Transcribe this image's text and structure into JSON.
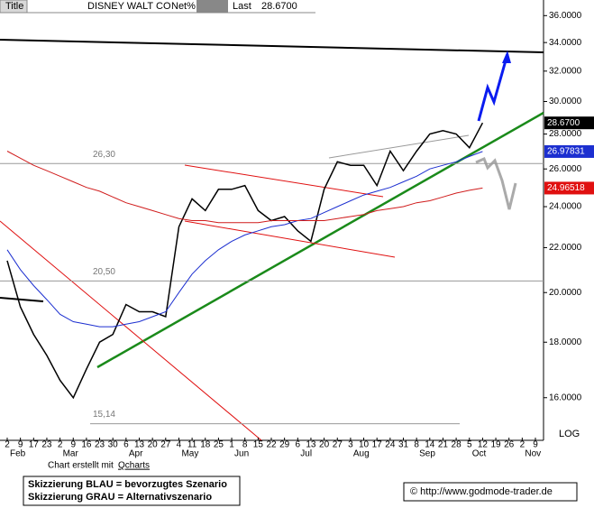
{
  "header": {
    "title_label": "Title",
    "symbol": "DISNEY WALT CO",
    "field": "Net%",
    "last_label": "Last",
    "last_value": "28.6700"
  },
  "chart_data": {
    "type": "line",
    "log_scale": true,
    "scale_label": "LOG",
    "categories": [
      "2",
      "9",
      "17",
      "23",
      "2",
      "9",
      "16",
      "23",
      "30",
      "6",
      "13",
      "20",
      "27",
      "4",
      "11",
      "18",
      "25",
      "1",
      "8",
      "15",
      "22",
      "29",
      "6",
      "13",
      "20",
      "27",
      "3",
      "10",
      "17",
      "24",
      "31",
      "8",
      "14",
      "21",
      "28",
      "5",
      "12",
      "19",
      "26",
      "2",
      "9"
    ],
    "month_labels": [
      "Feb",
      null,
      null,
      null,
      "Mar",
      null,
      null,
      null,
      null,
      "Apr",
      null,
      null,
      null,
      "May",
      null,
      null,
      null,
      "Jun",
      null,
      null,
      null,
      null,
      "Jul",
      null,
      null,
      null,
      "Aug",
      null,
      null,
      null,
      null,
      "Sep",
      null,
      null,
      null,
      "Oct",
      null,
      null,
      null,
      "Nov",
      null
    ],
    "series": [
      {
        "color": "#000000",
        "values": [
          21.4,
          19.4,
          18.3,
          17.5,
          16.6,
          16.0,
          17.0,
          18.0,
          18.3,
          19.5,
          19.2,
          19.2,
          19.0,
          23.0,
          24.4,
          23.8,
          24.9,
          24.9,
          25.1,
          23.8,
          23.3,
          23.5,
          22.8,
          22.3,
          24.9,
          26.4,
          26.2,
          26.2,
          25.1,
          27.0,
          25.9,
          27.0,
          28.0,
          28.2,
          28.0,
          27.2,
          28.67,
          null,
          null,
          null,
          null
        ]
      },
      {
        "color": "#1c2fd0",
        "values": [
          21.9,
          21.0,
          20.3,
          19.7,
          19.1,
          18.8,
          18.7,
          18.6,
          18.6,
          18.7,
          18.8,
          19.0,
          19.2,
          20.0,
          20.8,
          21.4,
          21.9,
          22.3,
          22.6,
          22.8,
          23.0,
          23.1,
          23.3,
          23.4,
          23.7,
          24.0,
          24.3,
          24.6,
          24.8,
          25.0,
          25.3,
          25.6,
          26.0,
          26.2,
          26.4,
          26.7,
          26.97831,
          null,
          null,
          null,
          null
        ]
      },
      {
        "color": "#d01c1c",
        "values": [
          27.0,
          26.6,
          26.2,
          25.9,
          25.6,
          25.3,
          25.0,
          24.8,
          24.5,
          24.2,
          24.0,
          23.8,
          23.6,
          23.4,
          23.3,
          23.3,
          23.2,
          23.2,
          23.2,
          23.2,
          23.3,
          23.3,
          23.3,
          23.3,
          23.3,
          23.4,
          23.5,
          23.6,
          23.8,
          23.9,
          24.0,
          24.2,
          24.3,
          24.5,
          24.7,
          24.85,
          24.96518,
          null,
          null,
          null,
          null
        ]
      }
    ],
    "ylim": [
      14.7,
      37.0
    ],
    "yticks": [
      {
        "value": 16,
        "label": "16.0000"
      },
      {
        "value": 18,
        "label": "18.0000"
      },
      {
        "value": 20,
        "label": "20.0000"
      },
      {
        "value": 22,
        "label": "22.0000"
      },
      {
        "value": 24,
        "label": "24.0000"
      },
      {
        "value": 26,
        "label": "26.0000"
      },
      {
        "value": 28,
        "label": "28.0000"
      },
      {
        "value": 30,
        "label": "30.0000"
      },
      {
        "value": 32,
        "label": "32.0000"
      },
      {
        "value": 34,
        "label": "34.0000"
      },
      {
        "value": 36,
        "label": "36.0000"
      }
    ],
    "levels": [
      {
        "value": 26.3,
        "label": "26,30"
      },
      {
        "value": 20.5,
        "label": "20,50"
      },
      {
        "value": 15.14,
        "label": "15,14"
      }
    ],
    "price_tags": [
      {
        "value": 28.67,
        "label": "28.6700",
        "color": "#000000"
      },
      {
        "value": 26.97831,
        "label": "26.97831",
        "color": "#1c2fd0"
      },
      {
        "value": 24.96518,
        "label": "24.96518",
        "color": "#e01010"
      }
    ]
  },
  "footer": {
    "credit_prefix": "Chart erstellt mit",
    "credit_link": "Qcharts",
    "legend_blue": "Skizzierung BLAU = bevorzugtes Szenario",
    "legend_gray": "Skizzierung GRAU = Alternativszenario",
    "copyright": "© http://www.godmode-trader.de"
  }
}
